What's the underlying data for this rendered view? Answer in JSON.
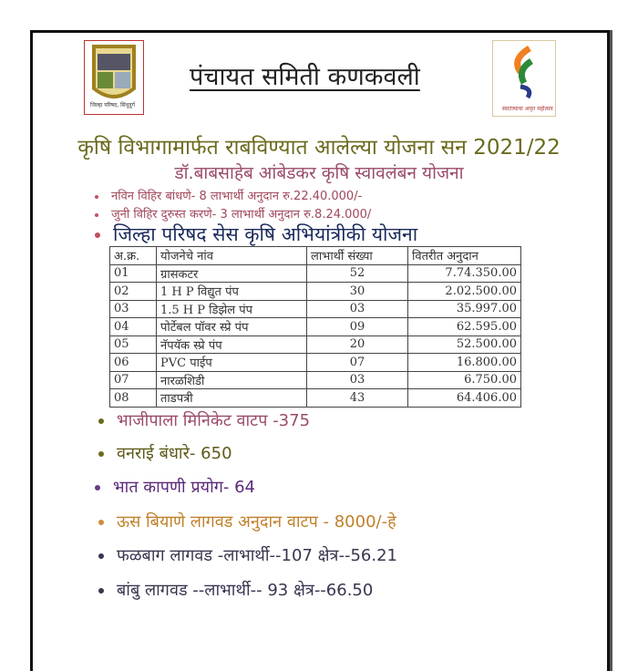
{
  "header": {
    "title": "पंचायत समिती कणकवली",
    "left_logo_text": "जिल्हा परिषद, सिंधुदुर्ग",
    "right_logo_text": "स्वातंत्र्याचा अमृत महोत्सव"
  },
  "heading": "कृषि विभागामार्फत राबविण्यात आलेल्या योजना सन 2021/22",
  "subheading": "डॉ.बाबसाहेब  आंबेडकर कृषि स्वावलंबन योजना",
  "small_bullets": [
    "नविन विहिर बांधणे- 8 लाभार्थी अनुदान रु.22.40.000/-",
    "जुनी विहिर दुरुस्त करणे- 3 लाभार्थी अनुदान रु.8.24.000/"
  ],
  "section": "जिल्हा परिषद सेस कृषि अभियांत्रीकी योजना",
  "table": {
    "headers": [
      "अ.क्र.",
      "योजनेचे नांव",
      "लाभार्थी संख्या",
      "वितरीत अनुदान"
    ],
    "rows": [
      [
        "01",
        "ग्रासकटर",
        "52",
        "7.74.350.00"
      ],
      [
        "02",
        "1 H P विद्युत पंप",
        "30",
        "2.02.500.00"
      ],
      [
        "03",
        "1.5 H P डिझेल पंप",
        "03",
        "35.997.00"
      ],
      [
        "04",
        "पोर्टेबल पॉवर स्प्रे पंप",
        "09",
        "62.595.00"
      ],
      [
        "05",
        "नॅपयॅक स्प्रे पंप",
        "20",
        "52.500.00"
      ],
      [
        "06",
        "PVC पाईप",
        "07",
        "16.800.00"
      ],
      [
        "07",
        "नारळशिडी",
        "03",
        "6.750.00"
      ],
      [
        "08",
        "ताडपत्री",
        "43",
        "64.406.00"
      ]
    ]
  },
  "bullets": [
    {
      "text": "भाजीपाला मिनिकेट वाटप -375",
      "color": "#9a4a6a",
      "dot": "#6b6a1e"
    },
    {
      "text": "वनराई बंधारे- 650",
      "color": "#5e5a1a",
      "dot": "#6b6a1e"
    },
    {
      "text": "भात कापणी प्रयोग- 64",
      "color": "#5a2a7a",
      "dot": "#6a3a8a"
    },
    {
      "text": "ऊस बियाणे लागवड अनुदान वाटप - 8000/-हे",
      "color": "#c0802a",
      "dot": "#d08a3a"
    },
    {
      "text": "फळबाग लागवड -लाभार्थी--107   क्षेत्र--56.21",
      "color": "#3a3550",
      "dot": "#3a3550"
    },
    {
      "text": "बांबु लागवड --लाभार्थी--  93 क्षेत्र--66.50",
      "color": "#3a3550",
      "dot": "#3a3550"
    }
  ]
}
